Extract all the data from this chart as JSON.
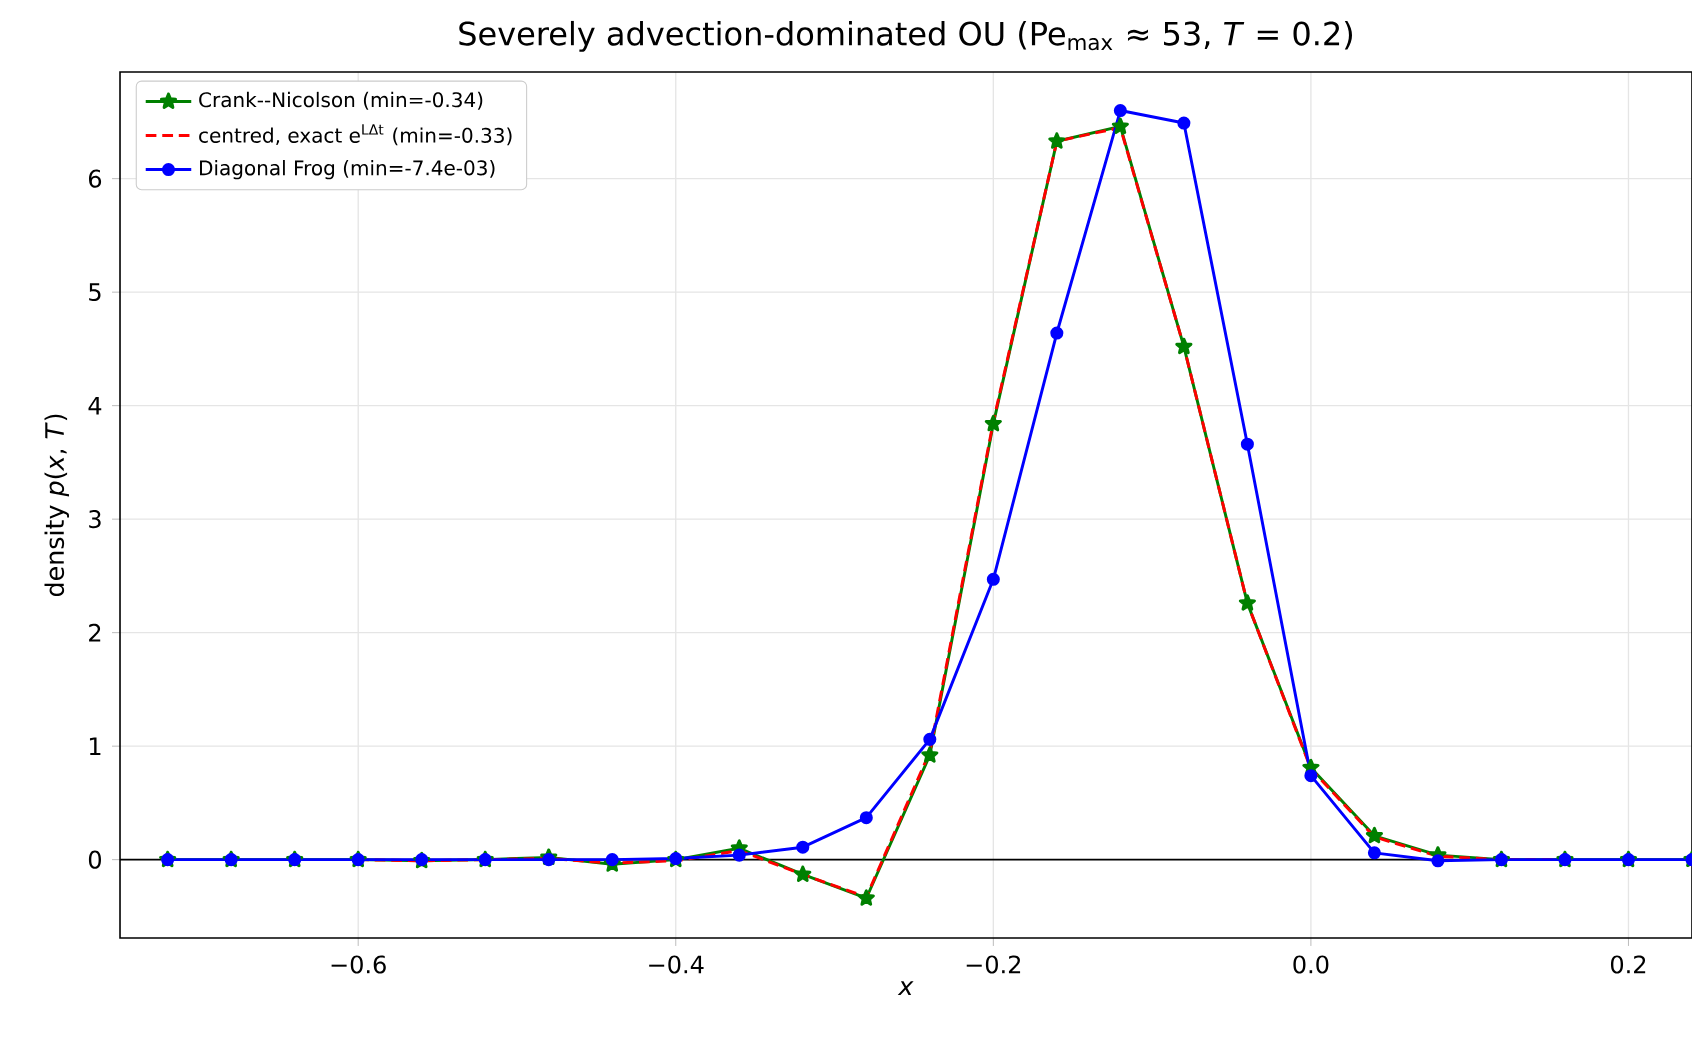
{
  "chart_data": {
    "type": "line",
    "title": "Severely advection-dominated OU (Pe$_{max}$ ≈ 53, *T* = 0.2)",
    "xlabel": "*x*",
    "ylabel": "density *p*(*x*, *T*)",
    "x": [
      -0.72,
      -0.68,
      -0.64,
      -0.6,
      -0.56,
      -0.52,
      -0.48,
      -0.44,
      -0.4,
      -0.36,
      -0.32,
      -0.28,
      -0.24,
      -0.2,
      -0.16,
      -0.12,
      -0.08,
      -0.04,
      0.0,
      0.04,
      0.08,
      0.12,
      0.16,
      0.2,
      0.24
    ],
    "series": [
      {
        "name": "Crank--Nicolson (min=-0.34)",
        "color": "#008000",
        "marker": "star",
        "line_style": "solid",
        "values": [
          0,
          0,
          0,
          0,
          -0.01,
          0,
          0.02,
          -0.04,
          0,
          0.1,
          -0.13,
          -0.34,
          0.92,
          3.84,
          6.33,
          6.46,
          4.52,
          2.26,
          0.81,
          0.21,
          0.04,
          0,
          0,
          0,
          0
        ]
      },
      {
        "name": "centred, exact e$^{LΔt}$ (min=-0.33)",
        "color": "#ff0000",
        "marker": "none",
        "line_style": "dashed",
        "values": [
          null,
          null,
          null,
          0,
          -0.01,
          0,
          0.01,
          -0.03,
          -0.01,
          0.08,
          -0.13,
          -0.33,
          0.95,
          3.86,
          6.33,
          6.45,
          4.52,
          2.26,
          0.8,
          0.2,
          0.03,
          0,
          0,
          null,
          null
        ]
      },
      {
        "name": "Diagonal Frog (min=-7.4e-03)",
        "color": "#0000ff",
        "marker": "circle",
        "line_style": "solid",
        "values": [
          0,
          0,
          0,
          0,
          0,
          0,
          0,
          0,
          0.01,
          0.04,
          0.11,
          0.37,
          1.06,
          2.47,
          4.64,
          6.6,
          6.49,
          3.66,
          0.74,
          0.06,
          -0.01,
          0,
          0,
          0,
          0
        ]
      }
    ],
    "xlim": [
      -0.75,
      0.24
    ],
    "ylim": [
      -0.69,
      6.94
    ],
    "xticks": [
      {
        "value": -0.6,
        "label": "−0.6"
      },
      {
        "value": -0.4,
        "label": "−0.4"
      },
      {
        "value": -0.2,
        "label": "−0.2"
      },
      {
        "value": 0.0,
        "label": "0.0"
      },
      {
        "value": 0.2,
        "label": "0.2"
      }
    ],
    "yticks": [
      0,
      1,
      2,
      3,
      4,
      5,
      6
    ],
    "ref_lines": [
      {
        "axis": "y",
        "value": 0,
        "color": "#000000"
      }
    ],
    "grid": true,
    "legend": "top left"
  }
}
